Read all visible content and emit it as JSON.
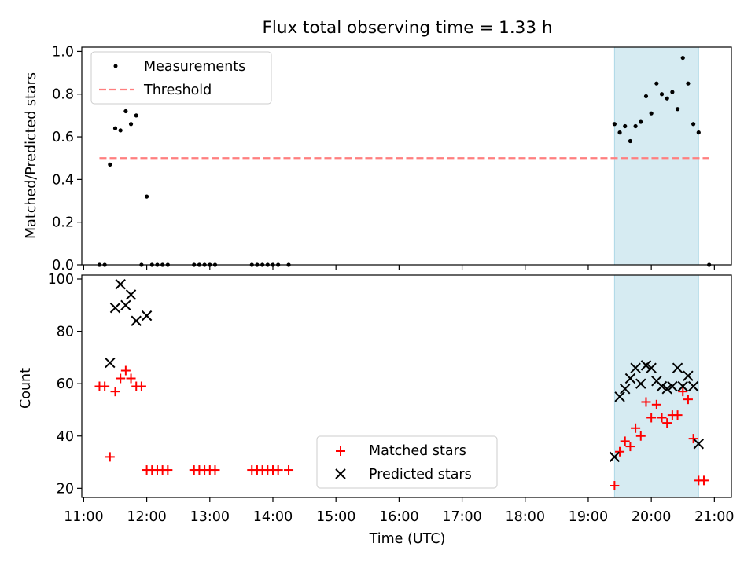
{
  "chart_data": {
    "type": "scatter",
    "title": "Flux total observing time = 1.33 h",
    "xlabel": "Time (UTC)",
    "x_tick_labels": [
      "11:00",
      "12:00",
      "13:00",
      "14:00",
      "15:00",
      "16:00",
      "17:00",
      "18:00",
      "19:00",
      "20:00",
      "21:00"
    ],
    "x_ticks_hours": [
      11,
      12,
      13,
      14,
      15,
      16,
      17,
      18,
      19,
      20,
      21
    ],
    "xlim_hours": [
      10.97,
      21.27
    ],
    "shaded_span": {
      "start": "19:25",
      "end": "20:45",
      "color": "#add8e6"
    },
    "top": {
      "ylabel": "Matched/Predicted stars",
      "ylim": [
        0,
        1.02
      ],
      "y_tick_labels": [
        "0.0",
        "0.2",
        "0.4",
        "0.6",
        "0.8",
        "1.0"
      ],
      "y_ticks": [
        0,
        0.2,
        0.4,
        0.6,
        0.8,
        1.0
      ],
      "legend": {
        "position": "upper left",
        "entries": [
          "Measurements",
          "Threshold"
        ]
      },
      "threshold": {
        "name": "Threshold",
        "value": 0.5,
        "x_start": "11:15",
        "x_end": "20:55",
        "color": "#ff7f7f"
      },
      "measurements": {
        "name": "Measurements",
        "color": "#000000",
        "x": [
          "11:15",
          "11:20",
          "11:25",
          "11:30",
          "11:35",
          "11:40",
          "11:45",
          "11:50",
          "11:55",
          "12:00",
          "12:05",
          "12:10",
          "12:15",
          "12:20",
          "12:45",
          "12:50",
          "12:55",
          "13:00",
          "13:05",
          "13:40",
          "13:45",
          "13:50",
          "13:55",
          "14:00",
          "14:05",
          "14:15",
          "19:25",
          "19:30",
          "19:35",
          "19:40",
          "19:45",
          "19:50",
          "19:55",
          "20:00",
          "20:05",
          "20:10",
          "20:15",
          "20:20",
          "20:25",
          "20:30",
          "20:35",
          "20:40",
          "20:45",
          "20:55"
        ],
        "y": [
          0,
          0,
          0.47,
          0.64,
          0.63,
          0.72,
          0.66,
          0.7,
          0,
          0.32,
          0,
          0,
          0,
          0,
          0,
          0,
          0,
          0,
          0,
          0,
          0,
          0,
          0,
          0,
          0,
          0,
          0.66,
          0.62,
          0.65,
          0.58,
          0.65,
          0.67,
          0.79,
          0.71,
          0.85,
          0.8,
          0.78,
          0.81,
          0.73,
          0.97,
          0.85,
          0.66,
          0.62,
          0
        ]
      }
    },
    "bottom": {
      "ylabel": "Count",
      "ylim": [
        16.5,
        101.5
      ],
      "y_tick_labels": [
        "20",
        "40",
        "60",
        "80",
        "100"
      ],
      "y_ticks": [
        20,
        40,
        60,
        80,
        100
      ],
      "legend": {
        "position": "lower center",
        "entries": [
          "Matched stars",
          "Predicted stars"
        ]
      },
      "matched": {
        "name": "Matched stars",
        "marker": "+",
        "color": "#ff0000",
        "x": [
          "11:15",
          "11:20",
          "11:25",
          "11:30",
          "11:35",
          "11:40",
          "11:45",
          "11:50",
          "11:55",
          "12:00",
          "12:05",
          "12:10",
          "12:15",
          "12:20",
          "12:45",
          "12:50",
          "12:55",
          "13:00",
          "13:05",
          "13:40",
          "13:45",
          "13:50",
          "13:55",
          "14:00",
          "14:05",
          "14:15",
          "19:25",
          "19:30",
          "19:35",
          "19:40",
          "19:45",
          "19:50",
          "19:55",
          "20:00",
          "20:05",
          "20:10",
          "20:15",
          "20:20",
          "20:25",
          "20:30",
          "20:35",
          "20:40",
          "20:45",
          "20:50"
        ],
        "y": [
          59,
          59,
          32,
          57,
          62,
          65,
          62,
          59,
          59,
          27,
          27,
          27,
          27,
          27,
          27,
          27,
          27,
          27,
          27,
          27,
          27,
          27,
          27,
          27,
          27,
          27,
          21,
          34,
          38,
          36,
          43,
          40,
          53,
          47,
          52,
          47,
          45,
          48,
          48,
          57,
          54,
          39,
          23,
          23
        ]
      },
      "predicted": {
        "name": "Predicted stars",
        "marker": "x",
        "color": "#000000",
        "x": [
          "11:25",
          "11:30",
          "11:35",
          "11:40",
          "11:45",
          "11:50",
          "12:00",
          "19:25",
          "19:30",
          "19:35",
          "19:40",
          "19:45",
          "19:50",
          "19:55",
          "20:00",
          "20:05",
          "20:10",
          "20:15",
          "20:20",
          "20:25",
          "20:30",
          "20:35",
          "20:40",
          "20:45"
        ],
        "y": [
          68,
          89,
          98,
          90,
          94,
          84,
          86,
          32,
          55,
          58,
          62,
          66,
          60,
          67,
          66,
          61,
          59,
          58,
          59,
          66,
          59,
          63,
          59,
          37
        ]
      }
    }
  }
}
